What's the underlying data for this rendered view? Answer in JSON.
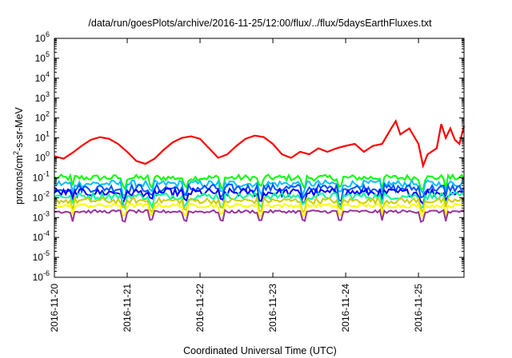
{
  "chart_data": {
    "type": "line",
    "title": "/data/run/goesPlots/archive/2016-11-25/12:00/flux/../flux/5daysEarthFluxes.txt",
    "xlabel": "Coordinated Universal Time (UTC)",
    "ylabel": {
      "prefix": "protons/cm",
      "sup": "2",
      "suffix": "-s-sr-MeV"
    },
    "yscale": "log",
    "ylim": [
      1e-06,
      1000000.0
    ],
    "y_ticks": [
      {
        "base": "10",
        "exp": "-6"
      },
      {
        "base": "10",
        "exp": "-5"
      },
      {
        "base": "10",
        "exp": "-4"
      },
      {
        "base": "10",
        "exp": "-3"
      },
      {
        "base": "10",
        "exp": "-2"
      },
      {
        "base": "10",
        "exp": "-1"
      },
      {
        "base": "10",
        "exp": "0"
      },
      {
        "base": "10",
        "exp": "1"
      },
      {
        "base": "10",
        "exp": "2"
      },
      {
        "base": "10",
        "exp": "3"
      },
      {
        "base": "10",
        "exp": "4"
      },
      {
        "base": "10",
        "exp": "5"
      },
      {
        "base": "10",
        "exp": "6"
      }
    ],
    "xlim": [
      "2016-11-20 00:00",
      "2016-11-25 15:00"
    ],
    "x_tick_labels": [
      "2016-11-20",
      "2016-11-21",
      "2016-11-22",
      "2016-11-23",
      "2016-11-24",
      "2016-11-25"
    ],
    "grid": false,
    "legend": "none",
    "series": [
      {
        "color": "#ff0000",
        "points": [
          [
            "2016-11-20 00:00",
            1.2
          ],
          [
            "2016-11-20 03:00",
            0.9
          ],
          [
            "2016-11-20 06:00",
            1.8
          ],
          [
            "2016-11-20 09:00",
            4.0
          ],
          [
            "2016-11-20 12:00",
            8.0
          ],
          [
            "2016-11-20 15:00",
            11
          ],
          [
            "2016-11-20 18:00",
            9.0
          ],
          [
            "2016-11-20 21:00",
            5.0
          ],
          [
            "2016-11-21 00:00",
            2.0
          ],
          [
            "2016-11-21 03:00",
            0.7
          ],
          [
            "2016-11-21 06:00",
            0.5
          ],
          [
            "2016-11-21 09:00",
            0.9
          ],
          [
            "2016-11-21 12:00",
            2.5
          ],
          [
            "2016-11-21 15:00",
            6.0
          ],
          [
            "2016-11-21 18:00",
            10
          ],
          [
            "2016-11-21 21:00",
            12
          ],
          [
            "2016-11-22 00:00",
            9.0
          ],
          [
            "2016-11-22 03:00",
            3.0
          ],
          [
            "2016-11-22 06:00",
            1.0
          ],
          [
            "2016-11-22 09:00",
            1.5
          ],
          [
            "2016-11-22 12:00",
            4.0
          ],
          [
            "2016-11-22 15:00",
            9.0
          ],
          [
            "2016-11-22 18:00",
            13
          ],
          [
            "2016-11-22 21:00",
            11
          ],
          [
            "2016-11-23 00:00",
            5.0
          ],
          [
            "2016-11-23 03:00",
            1.5
          ],
          [
            "2016-11-23 06:00",
            1.0
          ],
          [
            "2016-11-23 09:00",
            2.0
          ],
          [
            "2016-11-23 12:00",
            1.5
          ],
          [
            "2016-11-23 15:00",
            3.0
          ],
          [
            "2016-11-23 18:00",
            2.0
          ],
          [
            "2016-11-23 21:00",
            3.0
          ],
          [
            "2016-11-24 00:00",
            4.0
          ],
          [
            "2016-11-24 03:00",
            5.0
          ],
          [
            "2016-11-24 06:00",
            2.0
          ],
          [
            "2016-11-24 09:00",
            4.0
          ],
          [
            "2016-11-24 12:00",
            5.0
          ],
          [
            "2016-11-24 15:00",
            30
          ],
          [
            "2016-11-24 16:30",
            70
          ],
          [
            "2016-11-24 18:00",
            15
          ],
          [
            "2016-11-24 21:00",
            30
          ],
          [
            "2016-11-25 00:00",
            5.0
          ],
          [
            "2016-11-25 01:30",
            0.4
          ],
          [
            "2016-11-25 03:00",
            1.5
          ],
          [
            "2016-11-25 06:00",
            3.0
          ],
          [
            "2016-11-25 07:30",
            50
          ],
          [
            "2016-11-25 09:00",
            10
          ],
          [
            "2016-11-25 10:30",
            30
          ],
          [
            "2016-11-25 12:00",
            8.0
          ],
          [
            "2016-11-25 13:30",
            5.0
          ],
          [
            "2016-11-25 15:00",
            40
          ]
        ]
      },
      {
        "color": "#00ff00",
        "level": 0.1,
        "noise": 0.3,
        "points": []
      },
      {
        "color": "#00bfff",
        "level": 0.05,
        "noise": 0.35,
        "points": []
      },
      {
        "color": "#0055ff",
        "level": 0.03,
        "noise": 0.4,
        "points": []
      },
      {
        "color": "#0000ff",
        "level": 0.018,
        "noise": 0.4,
        "points": []
      },
      {
        "color": "#00ff99",
        "level": 0.012,
        "noise": 0.35,
        "points": []
      },
      {
        "color": "#cccc00",
        "level": 0.007,
        "noise": 0.3,
        "points": []
      },
      {
        "color": "#ffff00",
        "level": 0.004,
        "noise": 0.2,
        "points": []
      },
      {
        "color": "#993399",
        "level": 0.002,
        "noise": 0.15,
        "points": []
      }
    ]
  }
}
